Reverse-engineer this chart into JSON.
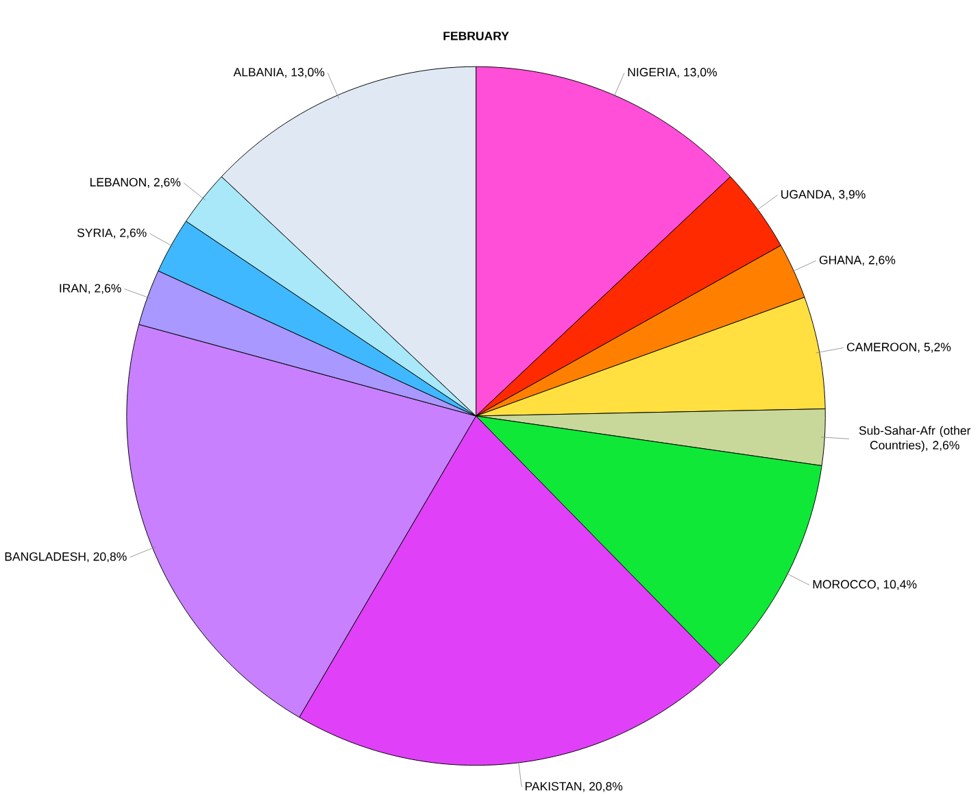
{
  "chart_data": {
    "type": "pie",
    "title": "FEBRUARY",
    "categories": [
      "NIGERIA",
      "UGANDA",
      "GHANA",
      "CAMEROON",
      "Sub-Sahar-Afr (other Countries)",
      "MOROCCO",
      "PAKISTAN",
      "BANGLADESH",
      "IRAN",
      "SYRIA",
      "LEBANON",
      "ALBANIA"
    ],
    "values": [
      13.0,
      3.9,
      2.6,
      5.2,
      2.6,
      10.4,
      20.8,
      20.8,
      2.6,
      2.6,
      2.6,
      13.0
    ],
    "value_labels": [
      ", 13,0%",
      ", 3,9%",
      ", 2,6%",
      ", 5,2%",
      ", 2,6%",
      ", 10,4%",
      ", 20,8%",
      ", 20,8%",
      ", 2,6%",
      ", 2,6%",
      ", 2,6%",
      ", 13,0%"
    ],
    "colors": [
      "#ff4fd8",
      "#ff2a00",
      "#ff8000",
      "#ffe040",
      "#c8d89a",
      "#10e838",
      "#e040f8",
      "#c880ff",
      "#a898ff",
      "#40b8ff",
      "#a8e8f8",
      "#e0e8f4"
    ]
  }
}
